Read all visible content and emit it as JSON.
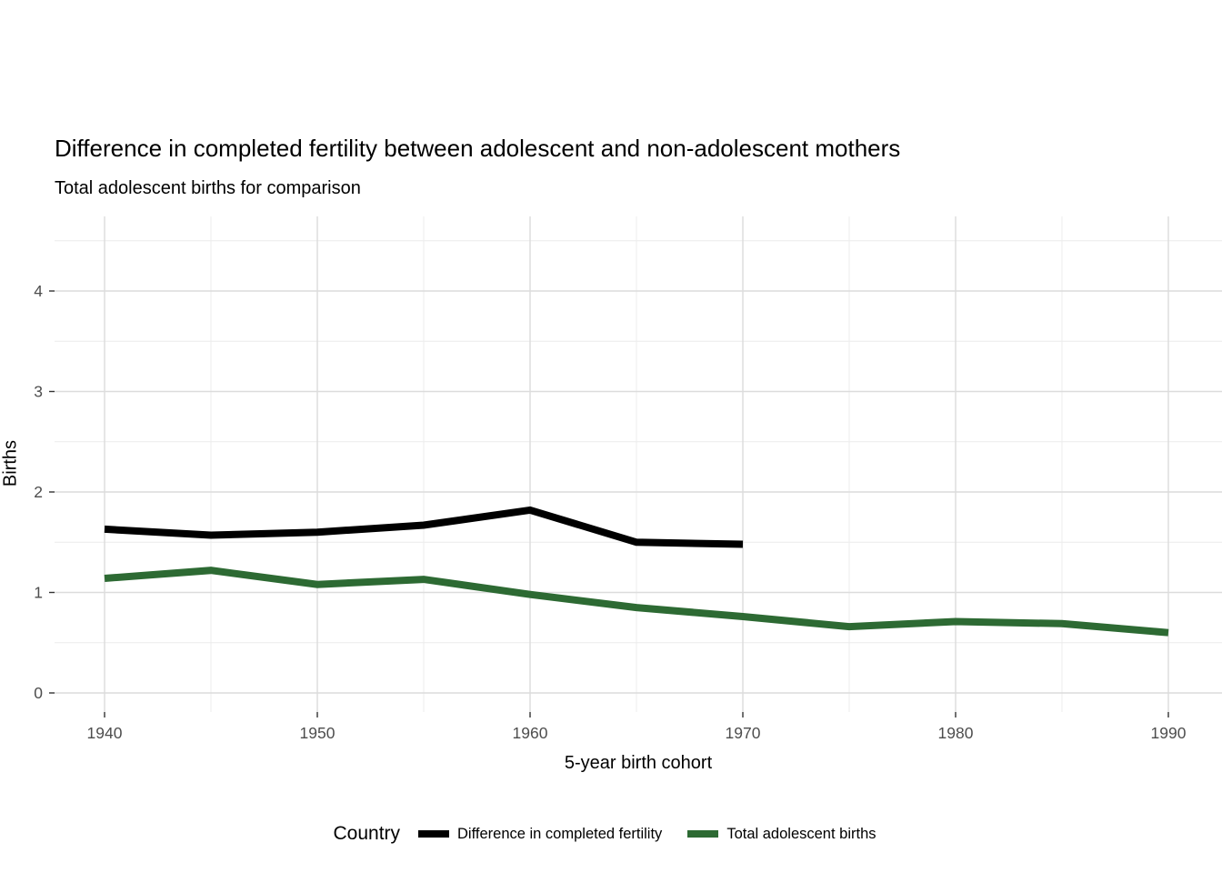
{
  "title": "Difference in completed fertility between adolescent and non-adolescent mothers",
  "subtitle": "Total adolescent births for comparison",
  "chart_data": {
    "type": "line",
    "title": "Difference in completed fertility between adolescent and non-adolescent mothers",
    "subtitle": "Total adolescent births for comparison",
    "xlabel": "5-year birth cohort",
    "ylabel": "Births",
    "xlim": [
      1937.5,
      1992.5
    ],
    "ylim": [
      0,
      4.7
    ],
    "xticks": [
      1940,
      1950,
      1960,
      1970,
      1980,
      1990
    ],
    "minor_xticks": [
      1945,
      1955,
      1965,
      1975,
      1985
    ],
    "yticks": [
      0,
      1,
      2,
      3,
      4
    ],
    "minor_yticks": [
      0.5,
      1.5,
      2.5,
      3.5,
      4.5
    ],
    "grid": true,
    "grid_major_color": "#dcdcdc",
    "grid_minor_color": "#ececec",
    "tick_label_color": "#4d4d4d",
    "legend_title": "Country",
    "legend_position": "bottom",
    "series": [
      {
        "name": "Difference in completed fertility",
        "color": "#000000",
        "x": [
          1940,
          1945,
          1950,
          1955,
          1960,
          1965,
          1970
        ],
        "values": [
          1.63,
          1.57,
          1.6,
          1.67,
          1.82,
          1.5,
          1.48
        ]
      },
      {
        "name": "Total adolescent births",
        "color": "#2d6a33",
        "x": [
          1940,
          1945,
          1950,
          1955,
          1960,
          1965,
          1970,
          1975,
          1980,
          1985,
          1990
        ],
        "values": [
          1.14,
          1.22,
          1.08,
          1.13,
          0.98,
          0.85,
          0.76,
          0.66,
          0.71,
          0.69,
          0.6
        ]
      }
    ]
  }
}
